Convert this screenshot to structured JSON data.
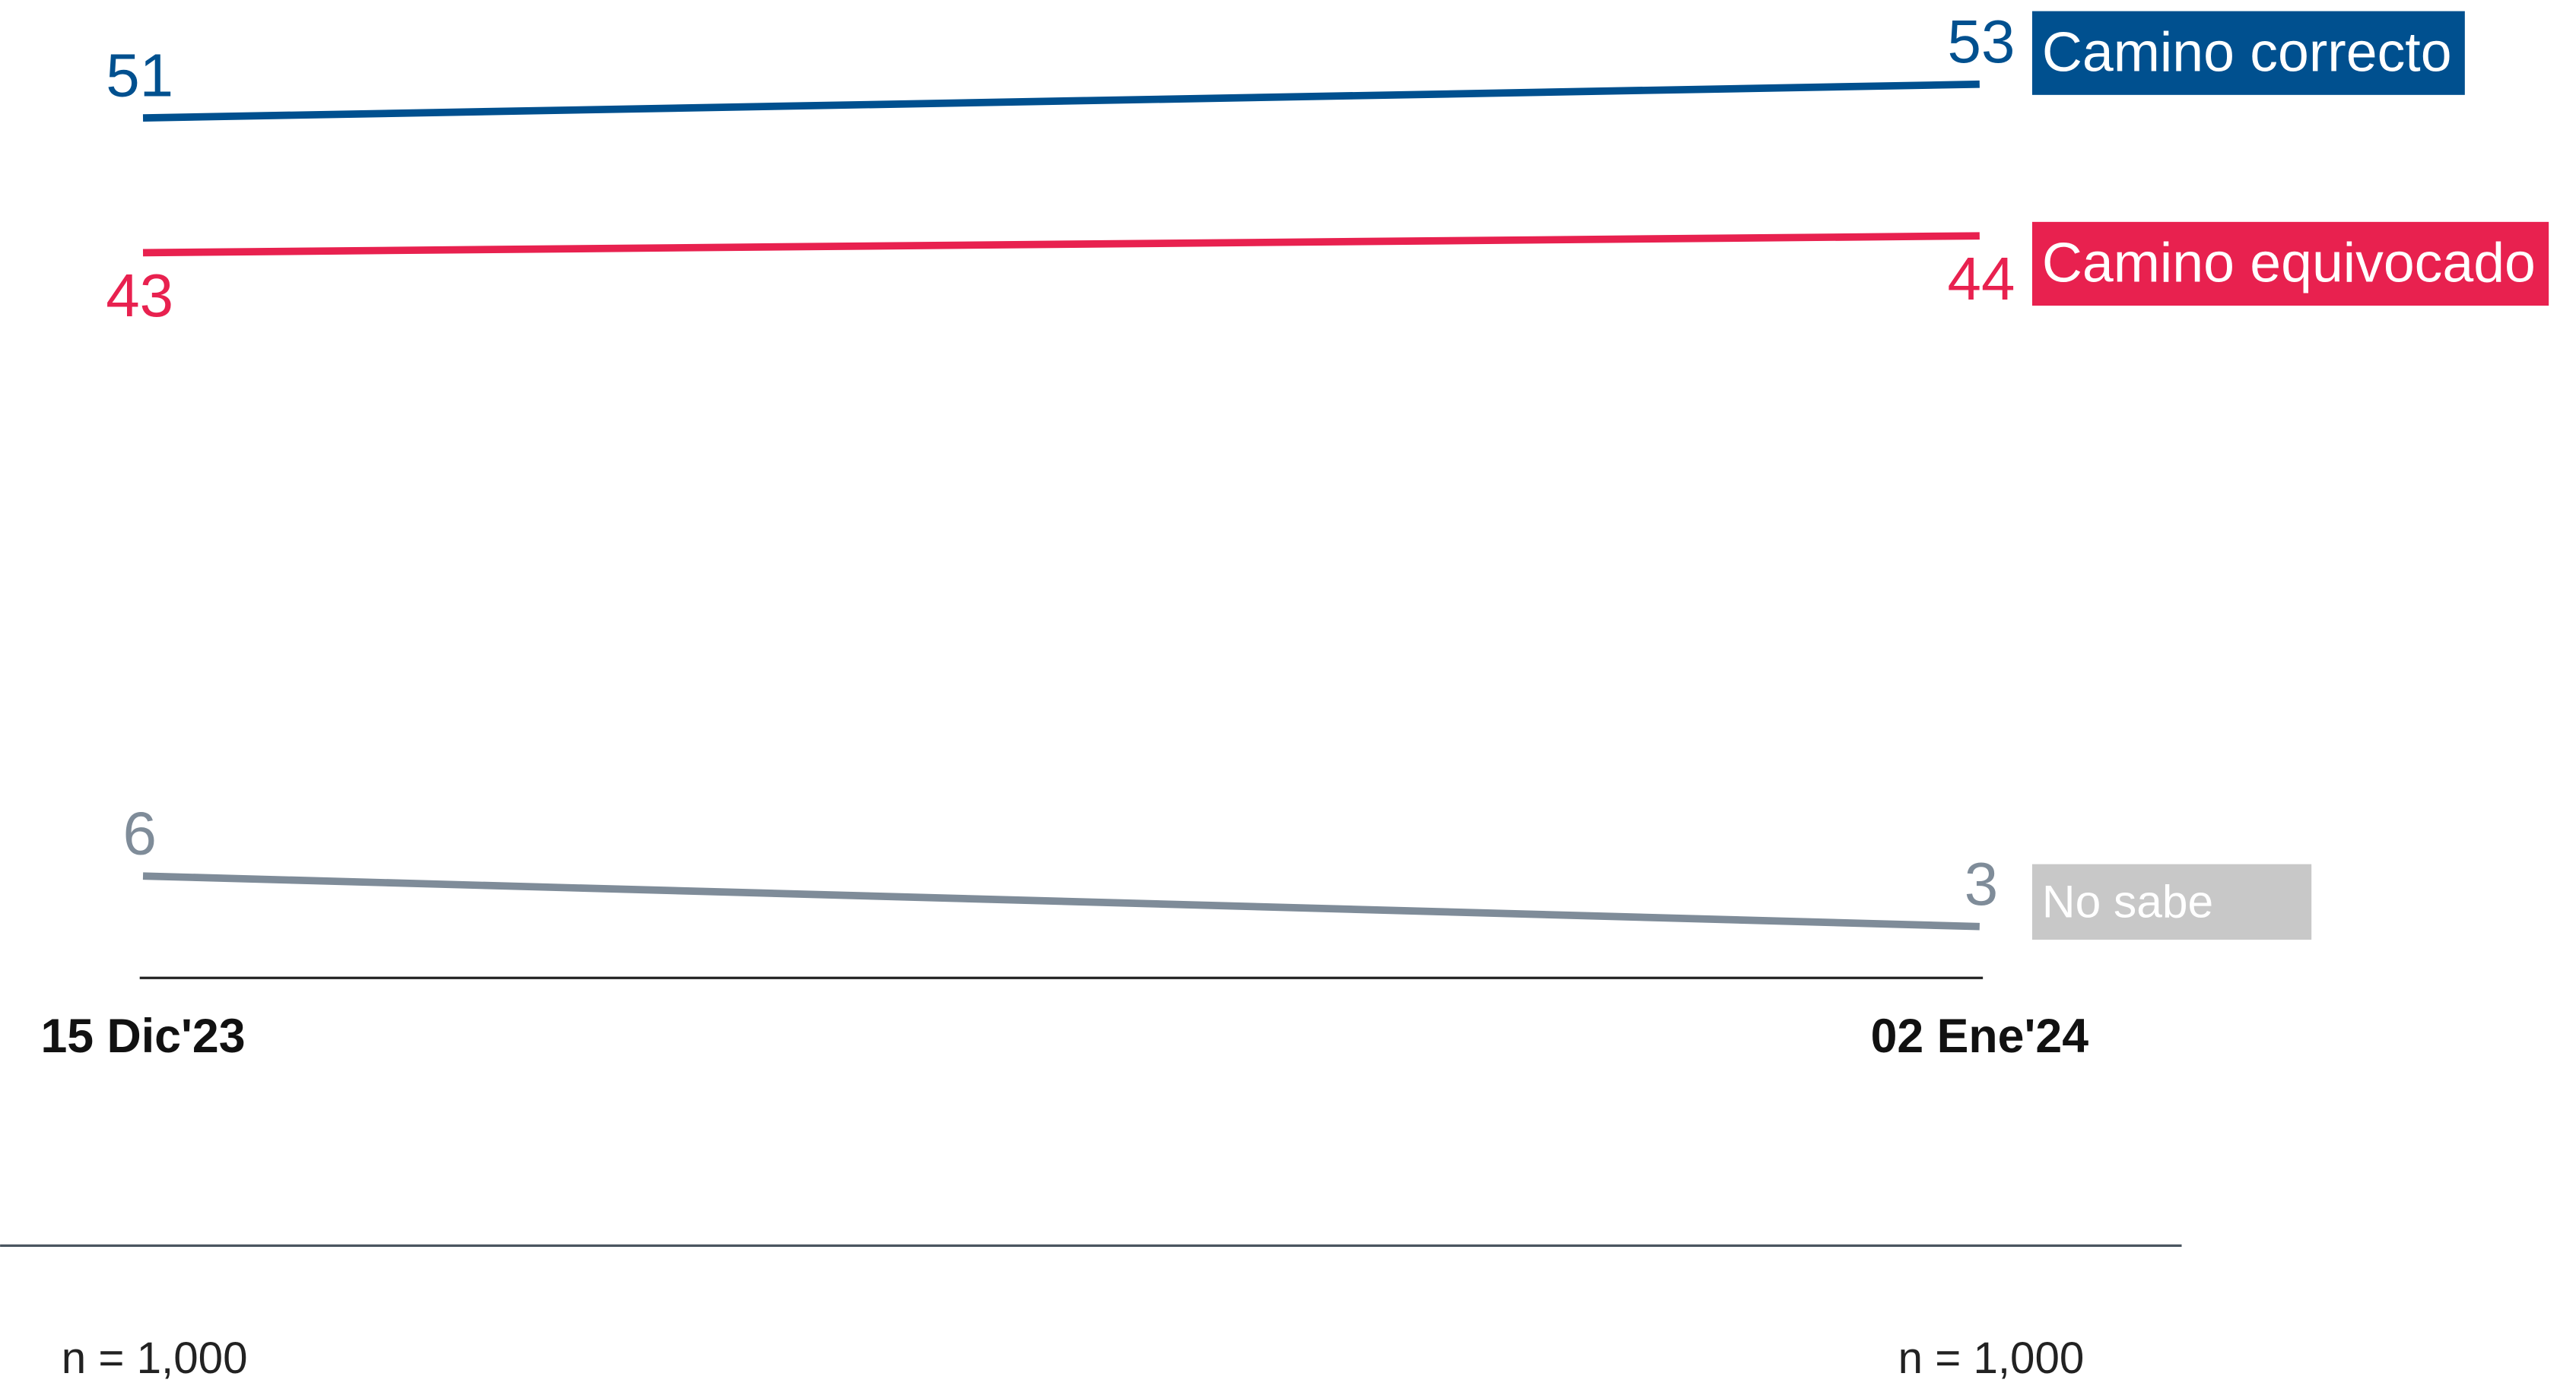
{
  "chart_data": {
    "type": "line",
    "categories": [
      "15 Dic'23",
      "02 Ene'24"
    ],
    "series": [
      {
        "name": "Camino correcto",
        "color": "#00508f",
        "legend_color": "#00508f",
        "values": [
          51,
          53
        ]
      },
      {
        "name": "Camino equivocado",
        "color": "#e8214f",
        "legend_color": "#e8214f",
        "values": [
          43,
          44
        ]
      },
      {
        "name": "No sabe",
        "color": "#7f8c99",
        "legend_color": "#c8c8c8",
        "values": [
          6,
          3
        ]
      }
    ],
    "ylim": [
      0,
      58
    ],
    "sample_sizes": [
      "n = 1,000",
      "n = 1,000"
    ]
  }
}
